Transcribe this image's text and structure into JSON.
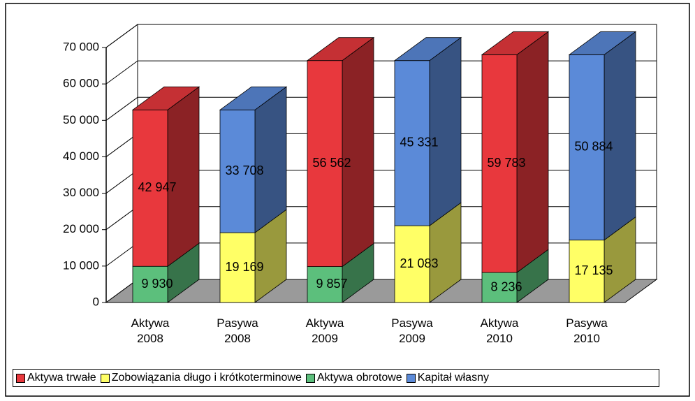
{
  "chart_data": {
    "type": "bar3d-stacked",
    "categories": [
      "Aktywa 2008",
      "Pasywa 2008",
      "Aktywa 2009",
      "Pasywa 2009",
      "Aktywa 2010",
      "Pasywa 2010"
    ],
    "series": [
      {
        "name": "Aktywa trwałe",
        "color": "#e8383d",
        "values": [
          42947,
          null,
          56562,
          null,
          59783,
          null
        ],
        "value_labels": [
          "42 947",
          null,
          "56 562",
          null,
          "59 783",
          null
        ]
      },
      {
        "name": "Zobowiązania długo i krótkoterminowe",
        "color": "#ffff66",
        "values": [
          null,
          19169,
          null,
          21083,
          null,
          17135
        ],
        "value_labels": [
          null,
          "19 169",
          null,
          "21 083",
          null,
          "17 135"
        ]
      },
      {
        "name": "Aktywa obrotowe",
        "color": "#5cbf7c",
        "values": [
          9930,
          null,
          9857,
          null,
          8236,
          null
        ],
        "value_labels": [
          "9 930",
          null,
          "9 857",
          null,
          "8 236",
          null
        ]
      },
      {
        "name": "Kapitał własny",
        "color": "#5b8ad8",
        "values": [
          null,
          33708,
          null,
          45331,
          null,
          50884
        ],
        "value_labels": [
          null,
          "33 708",
          null,
          "45 331",
          null,
          "50 884"
        ]
      }
    ],
    "ylim": [
      0,
      70000
    ],
    "yticks": [
      0,
      {
        "value": 10000,
        "label": "10 000"
      },
      {
        "value": 20000,
        "label": "20 000"
      },
      {
        "value": 30000,
        "label": "30 000"
      },
      {
        "value": 40000,
        "label": "40 000"
      },
      {
        "value": 50000,
        "label": "50 000"
      },
      {
        "value": 60000,
        "label": "60 000"
      },
      {
        "value": 70000,
        "label": "70 000"
      }
    ],
    "grid": true
  }
}
